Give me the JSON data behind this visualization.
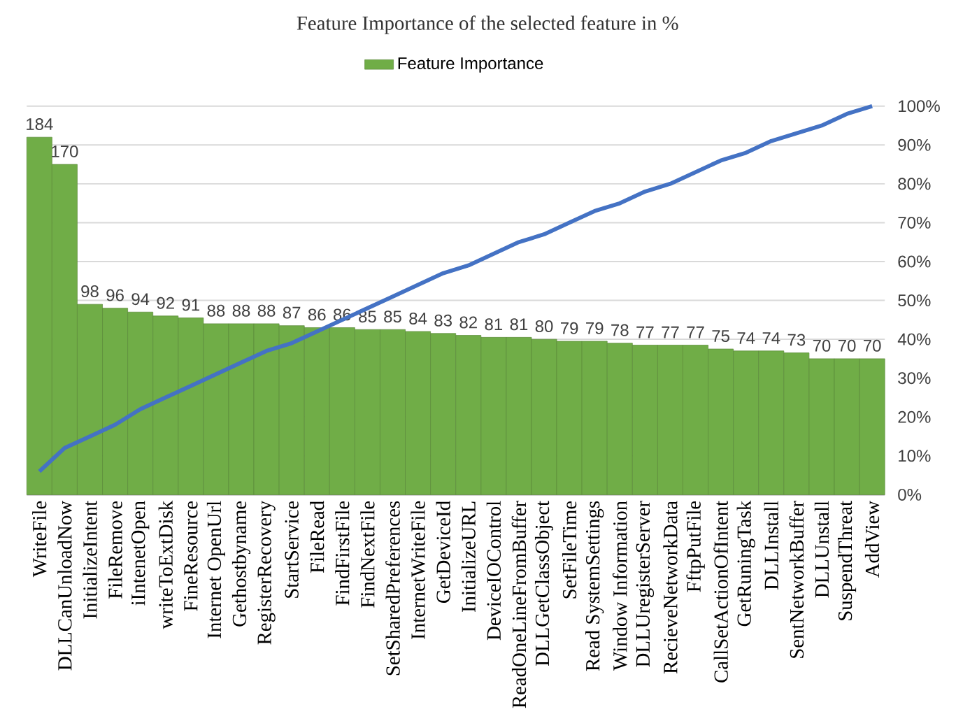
{
  "chart_data": {
    "type": "bar",
    "title": "Feature Importance of the selected feature in %",
    "categories": [
      "WriteFile",
      "DLLCanUnloadNow",
      "InitializeIntent",
      "FileRemove",
      "iIntenetOpen",
      "writeToExtDisk",
      "FineResource",
      "Internet OpenUrl",
      "Gethostbyname",
      "RegisterRecovery",
      "StartService",
      "FileRead",
      "FindFirstFile",
      "FindNextFile",
      "SetSharedPreferences",
      "InternetWriteFile",
      "GetDeviceId",
      "InitializeURL",
      "DeviceIOControl",
      "ReadOneLineFromBuffer",
      "DLLGetClassObject",
      "SetFileTime",
      "Read SystemSettings",
      "Window Information",
      "DLLUregisterServer",
      "RecieveNetworkData",
      "FftpPutFile",
      "CallSetActionOfIntent",
      "GetRuningTask",
      "DLLInstall",
      "SentNetworkBuffer",
      "DLLUnstall",
      "SuspendThreat",
      "AddView"
    ],
    "series": [
      {
        "name": "Feature Importance",
        "type": "bar",
        "color": "#70ad47",
        "values": [
          184,
          170,
          98,
          96,
          94,
          92,
          91,
          88,
          88,
          88,
          87,
          86,
          86,
          85,
          85,
          84,
          83,
          82,
          81,
          81,
          80,
          79,
          79,
          78,
          77,
          77,
          77,
          75,
          74,
          74,
          73,
          70,
          70,
          70
        ],
        "value_labels": [
          "184",
          "170",
          "98",
          "96",
          "94",
          "92",
          "91",
          "88",
          "88",
          "88",
          "87",
          "86",
          "86",
          "85",
          "85",
          "84",
          "83",
          "82",
          "81",
          "81",
          "80",
          "79",
          "79",
          "78",
          "77",
          "77",
          "77",
          "75",
          "74",
          "74",
          "73",
          "70",
          "70",
          "70"
        ]
      },
      {
        "type": "line",
        "axis": "y2",
        "color": "#4472c4",
        "values": [
          6,
          12,
          15,
          18,
          22,
          25,
          28,
          31,
          34,
          37,
          39,
          42,
          45,
          48,
          51,
          54,
          57,
          59,
          62,
          65,
          67,
          70,
          73,
          75,
          78,
          80,
          83,
          86,
          88,
          91,
          93,
          95,
          98,
          100
        ]
      }
    ],
    "ylim": [
      0,
      200
    ],
    "y2lim": [
      0,
      100
    ],
    "y2ticks": [
      {
        "value": 0,
        "label": "0%"
      },
      {
        "value": 10,
        "label": "10%"
      },
      {
        "value": 20,
        "label": "20%"
      },
      {
        "value": 30,
        "label": "30%"
      },
      {
        "value": 40,
        "label": "40%"
      },
      {
        "value": 50,
        "label": "50%"
      },
      {
        "value": 60,
        "label": "60%"
      },
      {
        "value": 70,
        "label": "70%"
      },
      {
        "value": 80,
        "label": "80%"
      },
      {
        "value": 90,
        "label": "90%"
      },
      {
        "value": 100,
        "label": "100%"
      }
    ],
    "grid": "y",
    "legend": "top"
  }
}
